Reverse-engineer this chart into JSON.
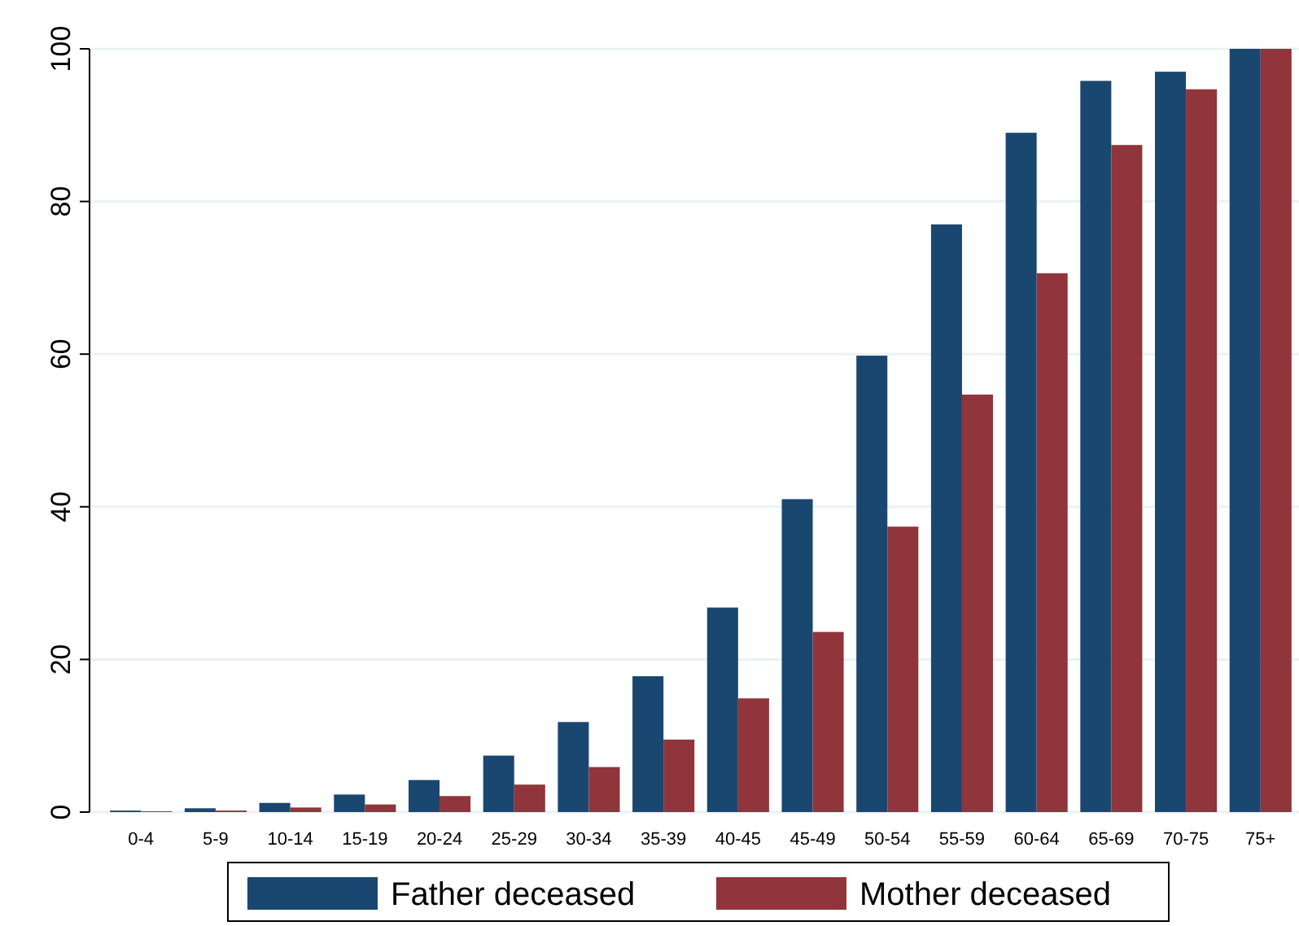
{
  "chart_data": {
    "type": "bar",
    "categories": [
      "0-4",
      "5-9",
      "10-14",
      "15-19",
      "20-24",
      "25-29",
      "30-34",
      "35-39",
      "40-45",
      "45-49",
      "50-54",
      "55-59",
      "60-64",
      "65-69",
      "70-75",
      "75+"
    ],
    "series": [
      {
        "name": "Father deceased",
        "color": "#1a476f",
        "values": [
          0.2,
          0.5,
          1.2,
          2.3,
          4.2,
          7.4,
          11.8,
          17.8,
          26.8,
          41,
          59.8,
          77,
          89,
          95.8,
          97,
          100
        ]
      },
      {
        "name": "Mother deceased",
        "color": "#90353b",
        "values": [
          0.1,
          0.2,
          0.6,
          1.0,
          2.1,
          3.6,
          5.9,
          9.5,
          14.9,
          23.6,
          37.4,
          54.7,
          70.6,
          87.4,
          94.7,
          100
        ]
      }
    ],
    "ylim": [
      0,
      100
    ],
    "yticks": [
      0,
      20,
      40,
      60,
      80,
      100
    ],
    "grid": "y",
    "legend": "bottom"
  }
}
